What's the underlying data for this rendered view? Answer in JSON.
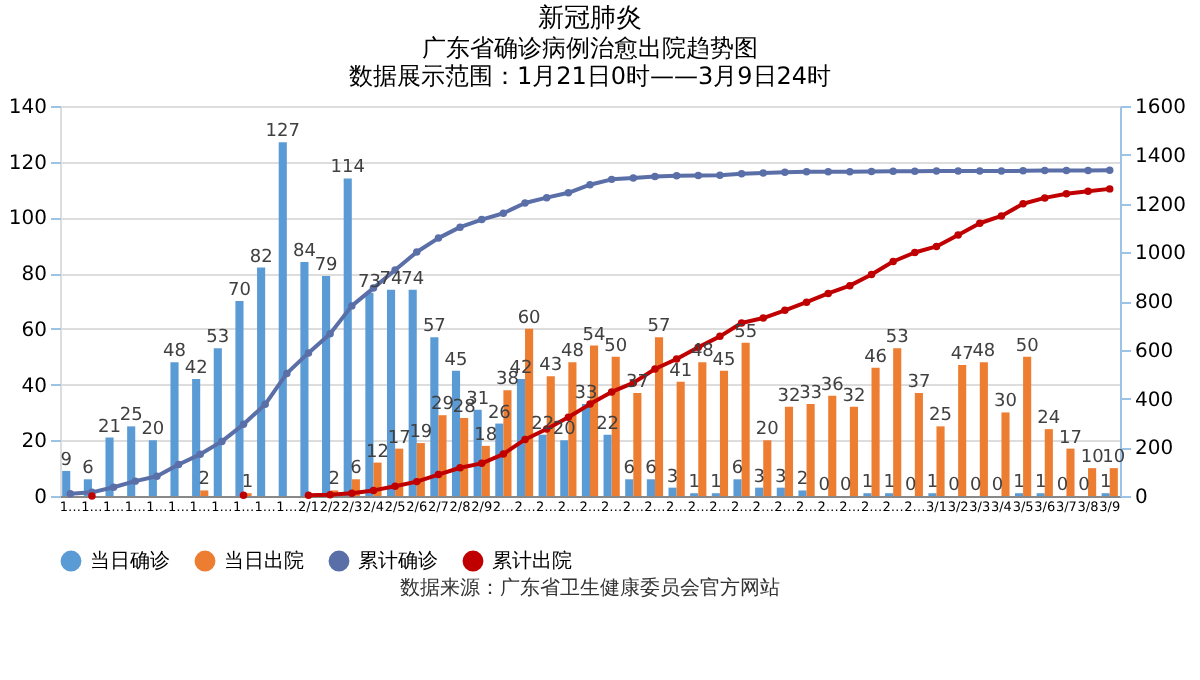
{
  "chart_data": {
    "type": "bar",
    "title": "新冠肺炎",
    "subtitle": "广东省确诊病例治愈出院趋势图",
    "annotations": [
      "数据展示范围：1月21日0时——3月9日24时",
      "数据来源：广东省卫生健康委员会官方网站"
    ],
    "categories": [
      "1…",
      "1…",
      "1…",
      "1…",
      "1…",
      "1…",
      "1…",
      "1…",
      "1…",
      "1…",
      "1…",
      "2/1",
      "2/2",
      "2/3",
      "2/4",
      "2/5",
      "2/6",
      "2/7",
      "2/8",
      "2/9",
      "2…",
      "2…",
      "2…",
      "2…",
      "2…",
      "2…",
      "2…",
      "2…",
      "2…",
      "2…",
      "2…",
      "2…",
      "2…",
      "2…",
      "2…",
      "2…",
      "2…",
      "2…",
      "2…",
      "2…",
      "3/1",
      "3/2",
      "3/3",
      "3/4",
      "3/5",
      "3/6",
      "3/7",
      "3/8",
      "3/9"
    ],
    "series": [
      {
        "name": "当日确诊",
        "color": "#5b9bd5",
        "values": [
          9,
          6,
          21,
          25,
          20,
          48,
          42,
          53,
          70,
          82,
          127,
          84,
          79,
          114,
          73,
          74,
          74,
          57,
          45,
          31,
          26,
          42,
          22,
          20,
          33,
          22,
          6,
          6,
          3,
          1,
          1,
          6,
          3,
          3,
          2,
          0,
          0,
          1,
          1,
          0,
          1,
          0,
          0,
          0,
          1,
          1,
          0,
          0,
          1
        ],
        "value_labels": [
          "9",
          "6",
          "21",
          "25",
          "20",
          "48",
          "42",
          "53",
          "70",
          "82",
          "127",
          "84",
          "79",
          "114",
          "73",
          "74",
          "74",
          "57",
          "45",
          "31",
          "26",
          "42",
          "22",
          "20",
          "33",
          "22",
          "6",
          "6",
          "3",
          "1",
          "1",
          "6",
          "3",
          "3",
          "2",
          "0",
          "0",
          "1",
          "1",
          "0",
          "1",
          "0",
          "0",
          "0",
          "1",
          "1",
          "0",
          "0",
          "1"
        ]
      },
      {
        "name": "当日出院",
        "color": "#ed7d31",
        "values": [
          null,
          null,
          null,
          null,
          null,
          null,
          2,
          null,
          1,
          null,
          null,
          null,
          2,
          6,
          12,
          17,
          19,
          29,
          28,
          18,
          38,
          60,
          43,
          48,
          54,
          50,
          37,
          57,
          41,
          48,
          45,
          55,
          20,
          32,
          33,
          36,
          32,
          46,
          53,
          37,
          25,
          47,
          48,
          30,
          50,
          24,
          17,
          10,
          10
        ],
        "value_labels": [
          null,
          null,
          null,
          null,
          null,
          null,
          "2",
          null,
          "1",
          null,
          null,
          null,
          "2",
          "6",
          "12",
          "17",
          "19",
          "29",
          "28",
          "18",
          "38",
          "60",
          "43",
          "48",
          "54",
          "50",
          "37",
          "57",
          "41",
          "48",
          "45",
          "55",
          "20",
          "32",
          "33",
          "36",
          "32",
          "46",
          "53",
          "37",
          "25",
          "47",
          "48",
          "30",
          "50",
          "24",
          "17",
          "10",
          "10"
        ]
      },
      {
        "name": "累计确诊",
        "type": "line",
        "axis": "y2",
        "color": "#5a6fa8",
        "values": [
          9,
          15,
          36,
          61,
          81,
          129,
          171,
          224,
          294,
          376,
          503,
          587,
          666,
          780,
          853,
          927,
          1001,
          1058,
          1103,
          1134,
          1160,
          1202,
          1224,
          1244,
          1277,
          1299,
          1305,
          1311,
          1314,
          1315,
          1316,
          1322,
          1325,
          1328,
          1330,
          1330,
          1330,
          1331,
          1332,
          1332,
          1333,
          1333,
          1333,
          1333,
          1334,
          1335,
          1335,
          1335,
          1336
        ]
      },
      {
        "name": "累计出院",
        "type": "line",
        "axis": "y2",
        "color": "#c00000",
        "values": [
          null,
          0,
          null,
          null,
          null,
          null,
          null,
          null,
          3,
          null,
          null,
          3,
          5,
          11,
          23,
          40,
          59,
          88,
          116,
          134,
          172,
          232,
          275,
          323,
          377,
          427,
          464,
          521,
          562,
          610,
          655,
          710,
          730,
          762,
          795,
          831,
          863,
          909,
          962,
          999,
          1024,
          1071,
          1119,
          1149,
          1199,
          1223,
          1240,
          1250,
          1260
        ]
      }
    ],
    "ylim": [
      0,
      140
    ],
    "yticks": [
      0,
      20,
      40,
      60,
      80,
      100,
      120,
      140
    ],
    "y2lim": [
      0,
      1600
    ],
    "y2ticks": [
      0,
      200,
      400,
      600,
      800,
      1000,
      1200,
      1400,
      1600
    ],
    "grid": "y",
    "legend": "bottom",
    "marker": "circle"
  }
}
